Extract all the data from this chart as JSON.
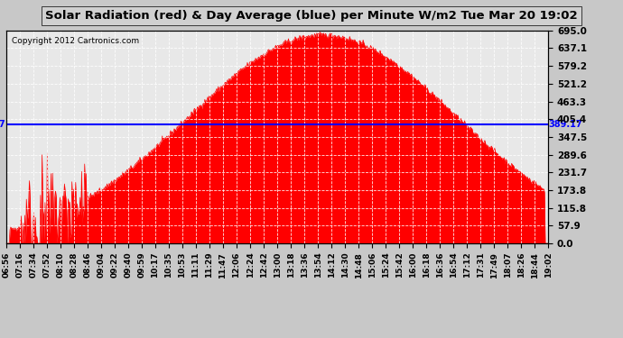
{
  "title": "Solar Radiation (red) & Day Average (blue) per Minute W/m2 Tue Mar 20 19:02",
  "copyright": "Copyright 2012 Cartronics.com",
  "avg_value": 389.17,
  "avg_label": "389.17",
  "ylim": [
    0.0,
    695.0
  ],
  "yticks": [
    0.0,
    57.9,
    115.8,
    173.8,
    231.7,
    289.6,
    347.5,
    405.4,
    463.3,
    521.2,
    579.2,
    637.1,
    695.0
  ],
  "bg_color": "#d8d8d8",
  "plot_bg_color": "#e8e8e8",
  "fill_color": "red",
  "line_color": "blue",
  "title_bg": "#c0c0c0",
  "grid_color": "white",
  "xtick_labels": [
    "06:56",
    "07:16",
    "07:34",
    "07:52",
    "08:10",
    "08:28",
    "08:46",
    "09:04",
    "09:22",
    "09:40",
    "09:59",
    "10:17",
    "10:35",
    "10:53",
    "11:11",
    "11:29",
    "11:47",
    "12:06",
    "12:24",
    "12:42",
    "13:00",
    "13:18",
    "13:36",
    "13:54",
    "14:12",
    "14:30",
    "14:48",
    "15:06",
    "15:24",
    "15:42",
    "16:00",
    "16:18",
    "16:36",
    "16:54",
    "17:12",
    "17:31",
    "17:49",
    "18:07",
    "18:26",
    "18:44",
    "19:02"
  ]
}
